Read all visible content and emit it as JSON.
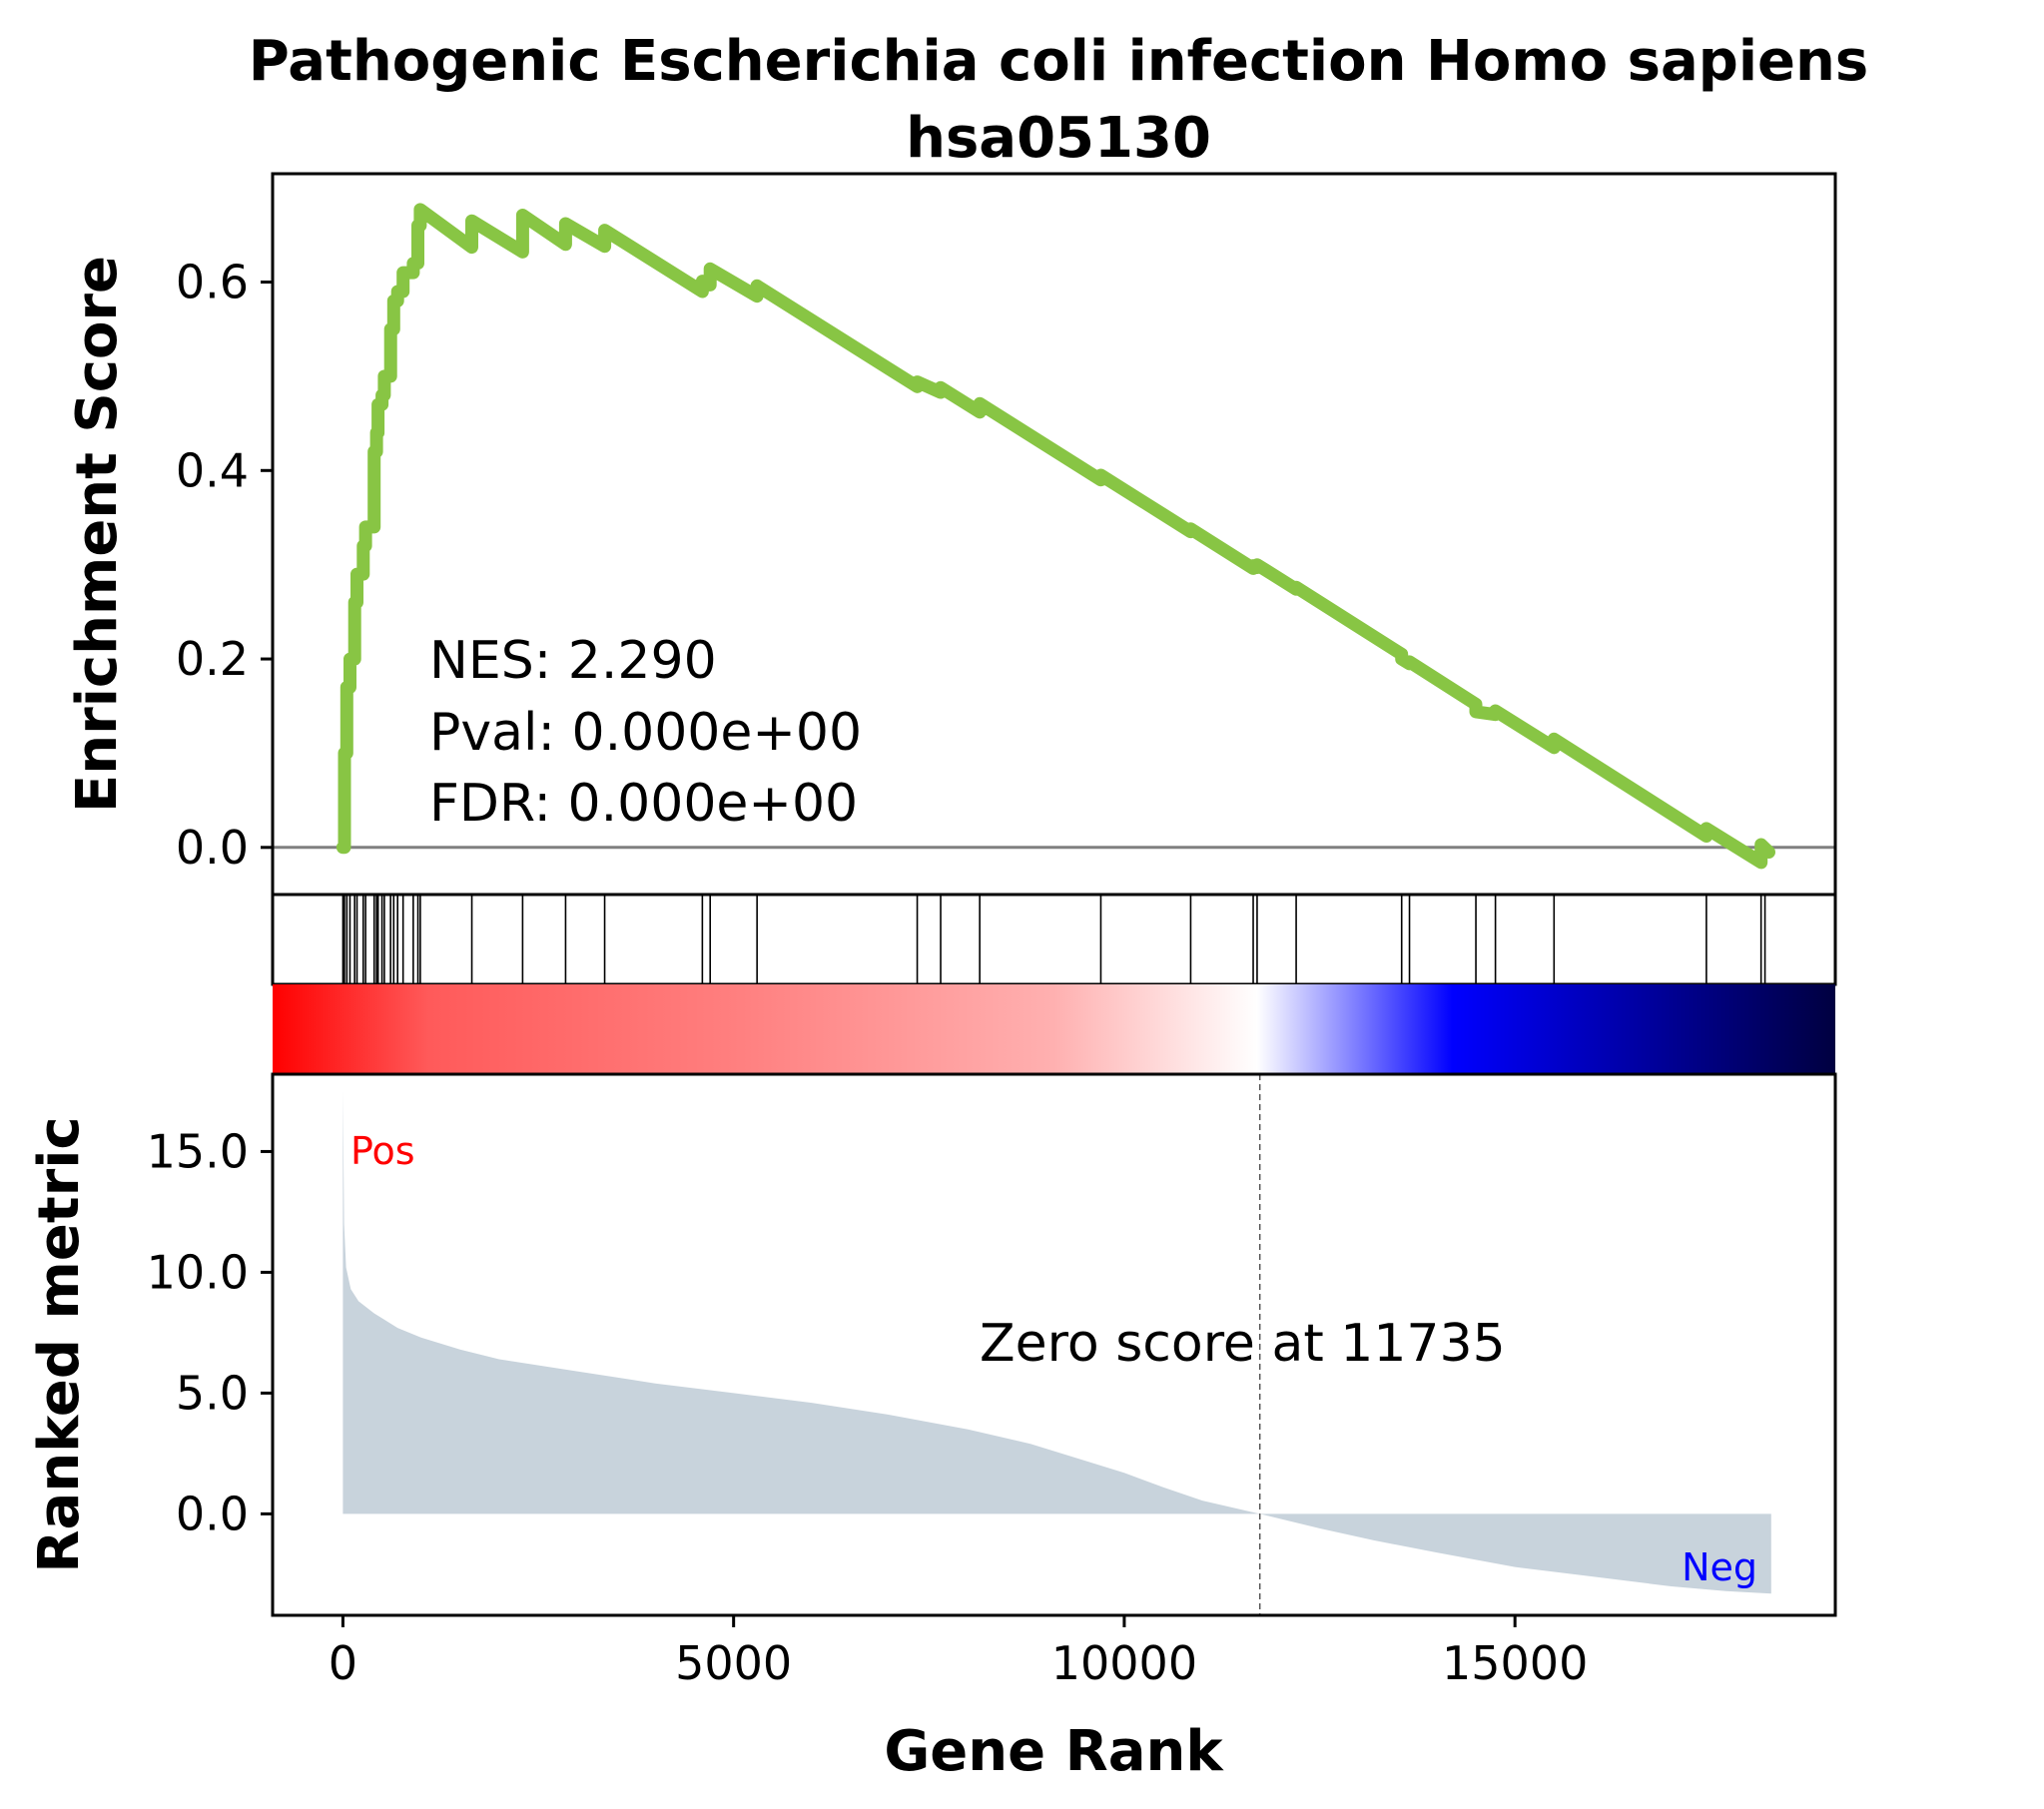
{
  "chart_data": {
    "type": "line",
    "title": "Pathogenic Escherichia coli infection Homo sapiens",
    "subtitle": "hsa05130",
    "xlabel": "Gene Rank",
    "xlim": [
      -900,
      19100
    ],
    "xticks": [
      0,
      5000,
      10000,
      15000
    ],
    "xtick_labels": [
      "0",
      "5000",
      "10000",
      "15000"
    ],
    "es_panel": {
      "ylabel": "Enrichment Score",
      "ylim": [
        -0.05,
        0.715
      ],
      "yticks": [
        0.0,
        0.2,
        0.4,
        0.6
      ],
      "ytick_labels": [
        "0.0",
        "0.2",
        "0.4",
        "0.6"
      ],
      "line_color": "#88c544",
      "baseline_color": "#808080",
      "series": {
        "x": [
          0,
          20,
          20,
          50,
          50,
          90,
          90,
          150,
          150,
          180,
          180,
          260,
          260,
          290,
          290,
          400,
          400,
          430,
          430,
          450,
          450,
          500,
          500,
          530,
          530,
          610,
          610,
          650,
          650,
          700,
          700,
          770,
          770,
          900,
          900,
          960,
          960,
          990,
          990,
          1650,
          1650,
          2300,
          2300,
          2850,
          2850,
          3350,
          3350,
          4600,
          4600,
          4700,
          4700,
          5300,
          5300,
          7350,
          7350,
          7650,
          7650,
          8150,
          8150,
          9700,
          9700,
          10850,
          10850,
          11650,
          11650,
          11700,
          11700,
          12200,
          12200,
          13550,
          13550,
          13650,
          13650,
          14500,
          14500,
          14750,
          14750,
          15500,
          15500,
          17450,
          17450,
          18150,
          18150,
          18250
        ],
        "y": [
          0.0,
          0.0,
          0.1,
          0.1,
          0.17,
          0.17,
          0.2,
          0.2,
          0.26,
          0.26,
          0.29,
          0.29,
          0.32,
          0.32,
          0.34,
          0.34,
          0.42,
          0.42,
          0.44,
          0.44,
          0.47,
          0.47,
          0.48,
          0.48,
          0.5,
          0.5,
          0.55,
          0.55,
          0.58,
          0.58,
          0.59,
          0.59,
          0.61,
          0.61,
          0.62,
          0.62,
          0.66,
          0.66,
          0.677,
          0.637,
          0.665,
          0.632,
          0.671,
          0.64,
          0.662,
          0.638,
          0.655,
          0.59,
          0.601,
          0.597,
          0.614,
          0.585,
          0.596,
          0.489,
          0.494,
          0.483,
          0.488,
          0.462,
          0.471,
          0.39,
          0.395,
          0.335,
          0.338,
          0.296,
          0.299,
          0.297,
          0.3,
          0.274,
          0.276,
          0.205,
          0.2,
          0.195,
          0.197,
          0.152,
          0.144,
          0.141,
          0.145,
          0.106,
          0.115,
          0.012,
          0.02,
          -0.016,
          0.003,
          -0.005
        ]
      },
      "annotations": [
        "NES: 2.290",
        "Pval: 0.000e+00",
        "FDR: 0.000e+00"
      ]
    },
    "hits": [
      0,
      20,
      50,
      90,
      150,
      180,
      260,
      290,
      400,
      430,
      450,
      500,
      530,
      610,
      650,
      700,
      770,
      900,
      960,
      990,
      1650,
      2300,
      2850,
      3350,
      4600,
      4700,
      5300,
      7350,
      7650,
      8150,
      9700,
      10850,
      11650,
      11700,
      12200,
      13550,
      13650,
      14500,
      14750,
      15500,
      17450,
      18150,
      18200
    ],
    "color_bar": {
      "stops": [
        "#ff0000",
        "#ff5a5a",
        "#ff8080",
        "#ffb0b0",
        "#ffffff",
        "#0000ff",
        "#000040"
      ]
    },
    "metric_panel": {
      "ylabel": "Ranked metric",
      "ylim": [
        -4.2,
        18.2
      ],
      "yticks": [
        0.0,
        5.0,
        10.0,
        15.0
      ],
      "ytick_labels": [
        "0.0",
        "5.0",
        "10.0",
        "15.0"
      ],
      "fill_color": "#c8d3dc",
      "zero_cross": 11735,
      "zero_label": "Zero score at 11735",
      "pos_label": "Pos",
      "neg_label": "Neg",
      "pos_color": "#ff0000",
      "neg_color": "#0000ff",
      "series": {
        "x": [
          0,
          15,
          40,
          100,
          200,
          400,
          700,
          1000,
          1500,
          2000,
          3000,
          4000,
          5000,
          6000,
          7000,
          8000,
          8800,
          9400,
          10000,
          10500,
          11000,
          11735,
          12500,
          13200,
          14000,
          15000,
          16000,
          17000,
          17700,
          18280
        ],
        "y": [
          17.5,
          12.0,
          10.2,
          9.3,
          8.8,
          8.3,
          7.7,
          7.3,
          6.8,
          6.4,
          5.9,
          5.4,
          5.0,
          4.6,
          4.1,
          3.5,
          2.9,
          2.3,
          1.7,
          1.1,
          0.55,
          0.0,
          -0.6,
          -1.1,
          -1.6,
          -2.2,
          -2.6,
          -3.0,
          -3.2,
          -3.3
        ]
      }
    }
  }
}
